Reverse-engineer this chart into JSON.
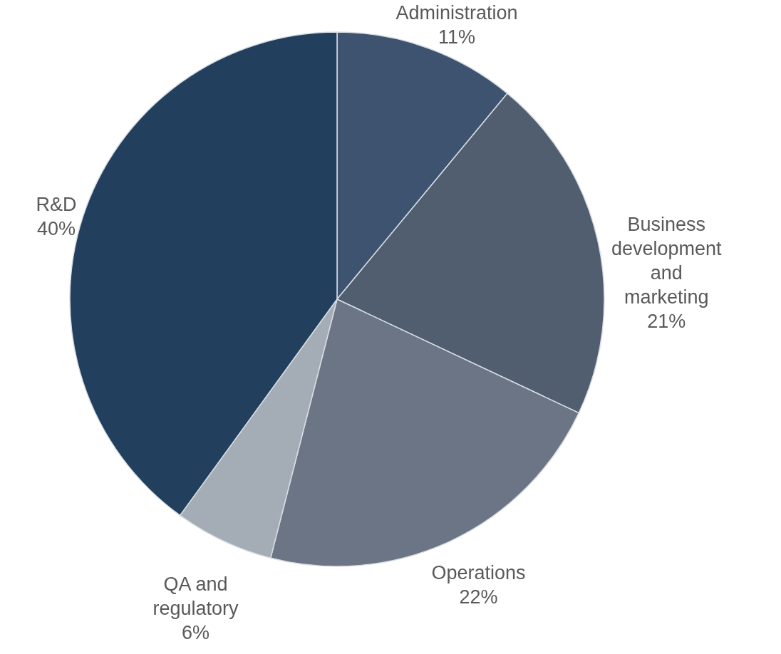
{
  "chart_data": {
    "type": "pie",
    "categories": [
      "Administration",
      "Business development and marketing",
      "Operations",
      "QA and regulatory",
      "R&D"
    ],
    "values": [
      11,
      21,
      22,
      6,
      40
    ],
    "colors": [
      "#3e5370",
      "#515e70",
      "#6b7585",
      "#a4acb6",
      "#223f5e"
    ],
    "value_labels": [
      "11%",
      "21%",
      "22%",
      "6%",
      "40%"
    ]
  }
}
